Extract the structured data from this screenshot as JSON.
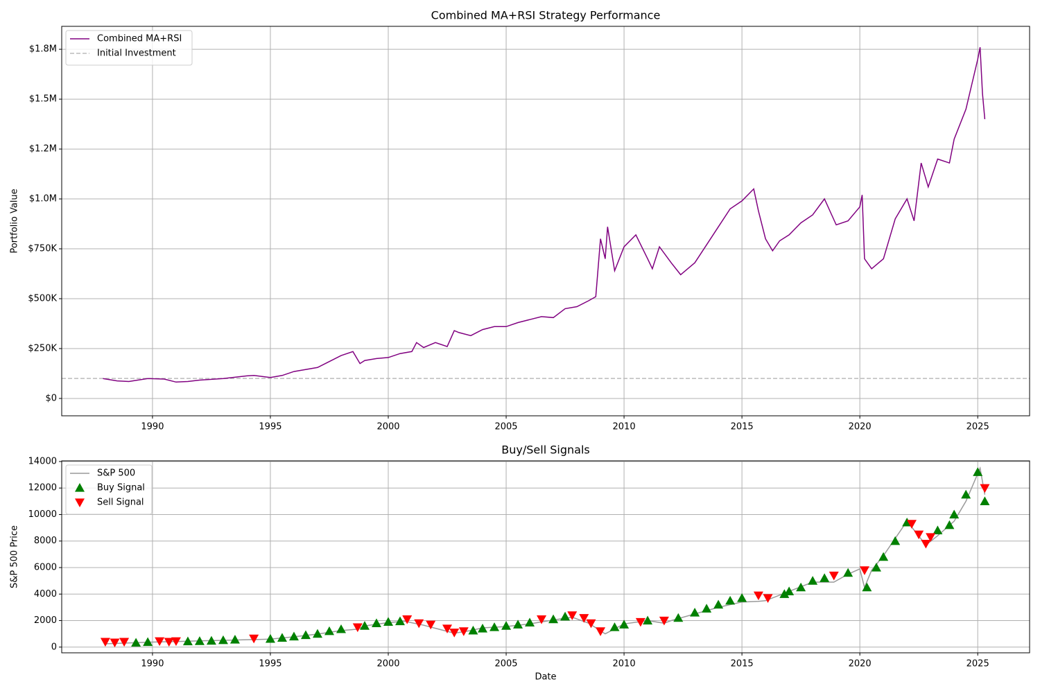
{
  "chart_data": [
    {
      "type": "line",
      "title": "Combined MA+RSI Strategy Performance",
      "ylabel": "Portfolio Value",
      "series": [
        {
          "name": "Combined MA+RSI",
          "color": "#800080",
          "x": [
            1987.9,
            1988.5,
            1989,
            1989.8,
            1990.5,
            1991,
            1991.5,
            1992,
            1993,
            1994,
            1994.3,
            1995,
            1995.5,
            1996,
            1997,
            1997.5,
            1998,
            1998.5,
            1998.8,
            1999,
            1999.5,
            2000,
            2000.5,
            2001,
            2001.2,
            2001.5,
            2002,
            2002.5,
            2002.8,
            2003,
            2003.5,
            2004,
            2004.5,
            2005,
            2005.5,
            2006,
            2006.5,
            2007,
            2007.5,
            2008,
            2008.5,
            2008.8,
            2009,
            2009.2,
            2009.3,
            2009.6,
            2010,
            2010.5,
            2011,
            2011.2,
            2011.5,
            2012,
            2012.4,
            2013,
            2013.5,
            2014,
            2014.5,
            2015,
            2015.5,
            2015.7,
            2016,
            2016.3,
            2016.6,
            2017,
            2017.5,
            2018,
            2018.5,
            2019,
            2019.5,
            2020,
            2020.1,
            2020.2,
            2020.5,
            2021,
            2021.5,
            2022,
            2022.3,
            2022.6,
            2022.9,
            2023.3,
            2023.8,
            2024,
            2024.5,
            2025,
            2025.1,
            2025.2,
            2025.3
          ],
          "values": [
            100000,
            88000,
            85000,
            100000,
            97000,
            82000,
            85000,
            92000,
            100000,
            113000,
            115000,
            105000,
            115000,
            135000,
            155000,
            185000,
            215000,
            235000,
            175000,
            190000,
            200000,
            205000,
            225000,
            235000,
            280000,
            255000,
            280000,
            260000,
            340000,
            330000,
            315000,
            345000,
            360000,
            360000,
            380000,
            395000,
            410000,
            405000,
            450000,
            460000,
            490000,
            510000,
            800000,
            700000,
            860000,
            640000,
            760000,
            820000,
            700000,
            650000,
            760000,
            680000,
            620000,
            680000,
            770000,
            860000,
            950000,
            990000,
            1050000,
            940000,
            800000,
            740000,
            790000,
            820000,
            880000,
            920000,
            1000000,
            870000,
            890000,
            960000,
            1020000,
            700000,
            650000,
            700000,
            900000,
            1000000,
            890000,
            1180000,
            1060000,
            1200000,
            1180000,
            1300000,
            1450000,
            1700000,
            1760000,
            1530000,
            1400000
          ]
        }
      ],
      "hlines": [
        {
          "name": "Initial Investment",
          "value": 100000,
          "color": "#bbbbbb"
        }
      ],
      "xlim": [
        1986.15,
        2027.2
      ],
      "xticks": [
        1990,
        1995,
        2000,
        2005,
        2010,
        2015,
        2020,
        2025
      ],
      "ylim": [
        -87000,
        1865000
      ],
      "yticks": [
        {
          "value": 0,
          "label": "$0"
        },
        {
          "value": 250000,
          "label": "$250K"
        },
        {
          "value": 500000,
          "label": "$500K"
        },
        {
          "value": 750000,
          "label": "$750K"
        },
        {
          "value": 1000000,
          "label": "$1.0M"
        },
        {
          "value": 1250000,
          "label": "$1.2M"
        },
        {
          "value": 1500000,
          "label": "$1.5M"
        },
        {
          "value": 1750000,
          "label": "$1.8M"
        }
      ],
      "grid": true,
      "legend": "upper-left"
    },
    {
      "type": "line",
      "title": "Buy/Sell Signals",
      "xlabel": "Date",
      "ylabel": "S&P 500 Price",
      "series": [
        {
          "name": "S&P 500",
          "color": "#999999",
          "x": [
            1988,
            1989,
            1990,
            1991,
            1992,
            1993,
            1994,
            1995,
            1996,
            1997,
            1998,
            1998.7,
            1999,
            2000,
            2000.7,
            2001.5,
            2002.8,
            2003.5,
            2004,
            2005,
            2006,
            2007,
            2007.8,
            2008.5,
            2009.2,
            2010,
            2011,
            2011.7,
            2012,
            2013,
            2014,
            2015,
            2015.7,
            2016,
            2017,
            2018,
            2018.9,
            2019.5,
            2020,
            2020.2,
            2020.5,
            2021,
            2022,
            2022.8,
            2023.3,
            2024,
            2024.5,
            2025.1,
            2025.3
          ],
          "values": [
            250,
            320,
            380,
            420,
            470,
            510,
            560,
            600,
            780,
            980,
            1250,
            1350,
            1600,
            1850,
            1950,
            1650,
            1050,
            1250,
            1450,
            1550,
            1750,
            2050,
            2250,
            1800,
            1000,
            1750,
            2000,
            1800,
            2000,
            2500,
            3000,
            3400,
            3450,
            3500,
            4200,
            4900,
            4900,
            5500,
            5900,
            4500,
            5800,
            6900,
            9500,
            7700,
            8400,
            9500,
            11000,
            13500,
            11500
          ]
        },
        {
          "name": "Buy Signal",
          "color": "#008000",
          "marker": "up",
          "x": [
            1989.3,
            1989.8,
            1991.5,
            1992,
            1992.5,
            1993,
            1993.5,
            1995,
            1995.5,
            1996,
            1996.5,
            1997,
            1997.5,
            1998,
            1999,
            1999.5,
            2000,
            2000.5,
            2003.6,
            2004,
            2004.5,
            2005,
            2005.5,
            2006,
            2007,
            2007.5,
            2009.6,
            2010,
            2011,
            2012.3,
            2013,
            2013.5,
            2014,
            2014.5,
            2015,
            2016.8,
            2017,
            2017.5,
            2018,
            2018.5,
            2019.5,
            2020.3,
            2020.7,
            2021,
            2021.5,
            2022,
            2023.3,
            2023.8,
            2024,
            2024.5,
            2025,
            2025.3
          ],
          "values": [
            330,
            380,
            430,
            450,
            480,
            520,
            560,
            620,
            700,
            800,
            900,
            1000,
            1200,
            1350,
            1600,
            1800,
            1900,
            1950,
            1250,
            1400,
            1500,
            1600,
            1700,
            1850,
            2100,
            2300,
            1500,
            1700,
            2000,
            2200,
            2600,
            2900,
            3200,
            3500,
            3700,
            4000,
            4200,
            4500,
            5000,
            5200,
            5600,
            4500,
            6000,
            6800,
            8000,
            9400,
            8800,
            9200,
            10000,
            11500,
            13200,
            11000
          ]
        },
        {
          "name": "Sell Signal",
          "color": "#ff0000",
          "marker": "down",
          "x": [
            1988,
            1988.4,
            1988.8,
            1990.3,
            1990.7,
            1991,
            1994.3,
            1998.7,
            2000.8,
            2001.3,
            2001.8,
            2002.5,
            2002.8,
            2003.2,
            2006.5,
            2007.8,
            2008.3,
            2008.6,
            2009,
            2010.7,
            2011.7,
            2015.7,
            2016.1,
            2018.9,
            2020.2,
            2022.2,
            2022.5,
            2022.8,
            2023,
            2025.3
          ],
          "values": [
            400,
            350,
            400,
            450,
            400,
            450,
            650,
            1500,
            2100,
            1800,
            1700,
            1400,
            1100,
            1200,
            2100,
            2400,
            2200,
            1800,
            1200,
            1900,
            2000,
            3900,
            3700,
            5400,
            5800,
            9300,
            8500,
            7800,
            8300,
            12000
          ]
        }
      ],
      "xlim": [
        1986.15,
        2027.2
      ],
      "xticks": [
        1990,
        1995,
        2000,
        2005,
        2010,
        2015,
        2020,
        2025
      ],
      "ylim": [
        -430,
        14050
      ],
      "yticks": [
        0,
        2000,
        4000,
        6000,
        8000,
        10000,
        12000,
        14000
      ],
      "grid": true,
      "legend": "upper-left"
    }
  ]
}
